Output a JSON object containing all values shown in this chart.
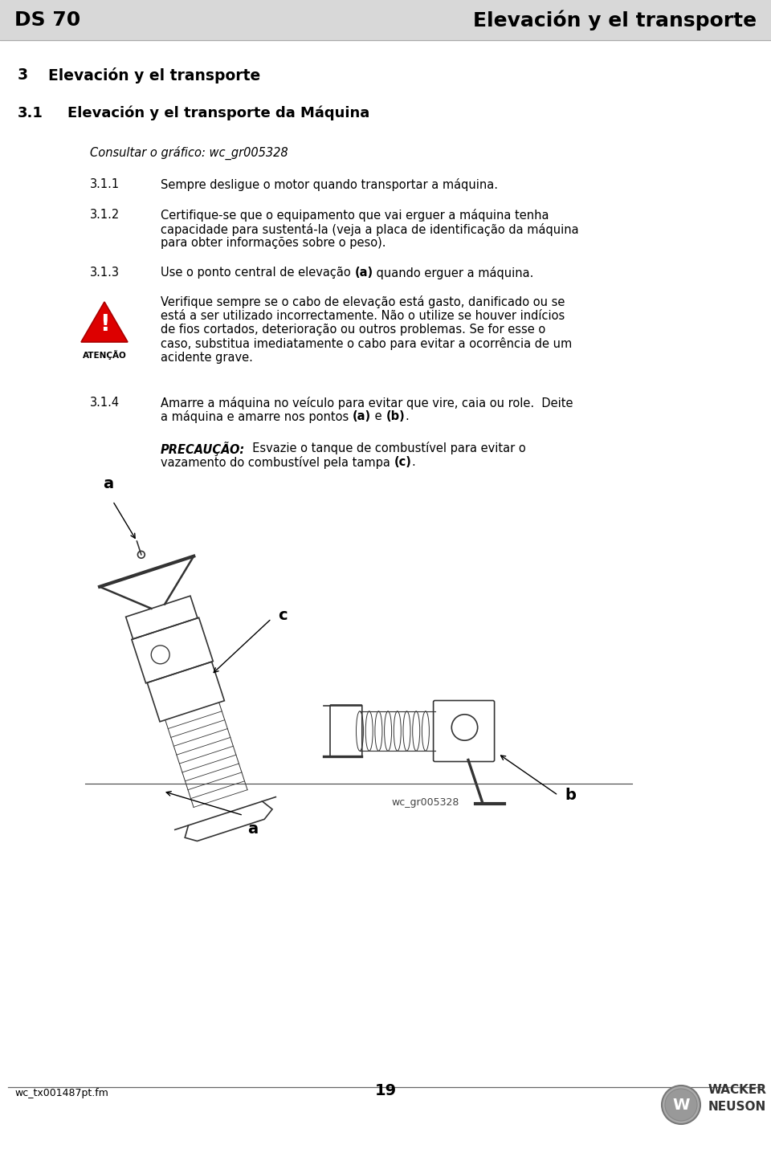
{
  "page_bg": "#ffffff",
  "header_bg": "#d8d8d8",
  "header_left": "DS 70",
  "header_right": "Elevación y el transporte",
  "section_num": "3",
  "section_title": "Elevación y el transporte",
  "subsection_num": "3.1",
  "subsection_title": "Elevación y el transporte da Máquina",
  "italic_note": "Consultar o gráfico: wc_gr005328",
  "item_311_num": "3.1.1",
  "item_311_text": "Sempre desligue o motor quando transportar a máquina.",
  "item_312_num": "3.1.2",
  "item_312_line1": "Certifique-se que o equipamento que vai erguer a máquina tenha",
  "item_312_line2": "capacidade para sustentá-la (veja a placa de identificação da máquina",
  "item_312_line3": "para obter informações sobre o peso).",
  "item_313_num": "3.1.3",
  "item_313_pre": "Use o ponto central de elevação ",
  "item_313_bold": "(a)",
  "item_313_post": " quando erguer a máquina.",
  "warn_lines": [
    "Verifique sempre se o cabo de elevação está gasto, danificado ou se",
    "está a ser utilizado incorrectamente. Não o utilize se houver indícios",
    "de fios cortados, deterioração ou outros problemas. Se for esse o",
    "caso, substitua imediatamente o cabo para evitar a ocorrência de um",
    "acidente grave."
  ],
  "warning_label": "ATENÇÃO",
  "item_314_num": "3.1.4",
  "item_314_line1": "Amarre a máquina no veículo para evitar que vire, caia ou role.  Deite",
  "item_314_line2_pre": "a máquina e amarre nos pontos ",
  "item_314_line2_a": "(a)",
  "item_314_line2_mid": " e ",
  "item_314_line2_b": "(b)",
  "item_314_line2_post": ".",
  "prec_label": "PRECAUÇÃO:",
  "prec_line1_post": "  Esvazie o tanque de combustível para evitar o",
  "prec_line2_pre": "vazamento do combustível pela tampa ",
  "prec_line2_c": "(c)",
  "prec_line2_post": ".",
  "image_caption": "wc_gr005328",
  "label_a_top": "a",
  "label_c": "c",
  "label_b": "b",
  "label_a_bottom": "a",
  "footer_left": "wc_tx001487pt.fm",
  "footer_page": "19",
  "footer_wacker": "WACKER",
  "footer_neuson": "NEUSON"
}
